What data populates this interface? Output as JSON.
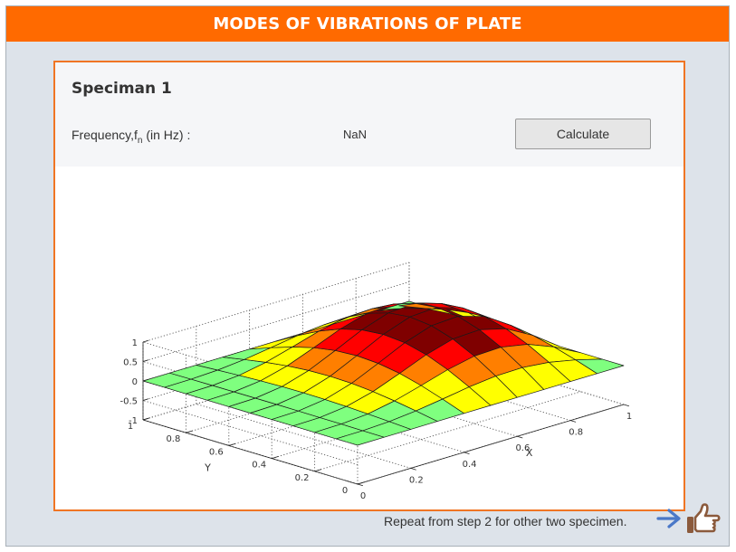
{
  "app": {
    "title": "MODES OF VIBRATIONS OF PLATE"
  },
  "specimen": {
    "title": "Speciman 1",
    "frequency_label": "Frequency,f",
    "frequency_sub": "n",
    "frequency_unit": " (in Hz) :",
    "frequency_value": "NaN",
    "calculate_label": "Calculate"
  },
  "footer": {
    "text": "Repeat from step 2 for other two specimen.",
    "arrow_icon": "arrow-right-icon",
    "hand_icon": "pointing-hand-icon"
  },
  "colors": {
    "title_bar": "#ff6a00",
    "panel_border": "#f07524",
    "arrow": "#4a78c8",
    "hand": "#8b5a3c"
  },
  "chart_data": {
    "type": "surface",
    "xlabel": "X",
    "ylabel": "Y",
    "zlabel": "",
    "xlim": [
      0,
      1
    ],
    "ylim": [
      0,
      1
    ],
    "zlim": [
      -1,
      1
    ],
    "x_ticks": [
      "0",
      "0.2",
      "0.4",
      "0.6",
      "0.8",
      "1"
    ],
    "y_ticks": [
      "0",
      "0.2",
      "0.4",
      "0.6",
      "0.8",
      "1"
    ],
    "z_ticks": [
      "-1",
      "-0.5",
      "0",
      "0.5",
      "1"
    ],
    "grid": true,
    "colormap": [
      "#00007f",
      "#0000ff",
      "#007fff",
      "#00ffff",
      "#7fff7f",
      "#ffff00",
      "#ff7f00",
      "#ff0000",
      "#7f0000"
    ],
    "surface": "z = sin(pi*x)*sin(pi*y) - 0.5*sin(2*pi*x)*sin(pi*y), grid 11x11"
  }
}
